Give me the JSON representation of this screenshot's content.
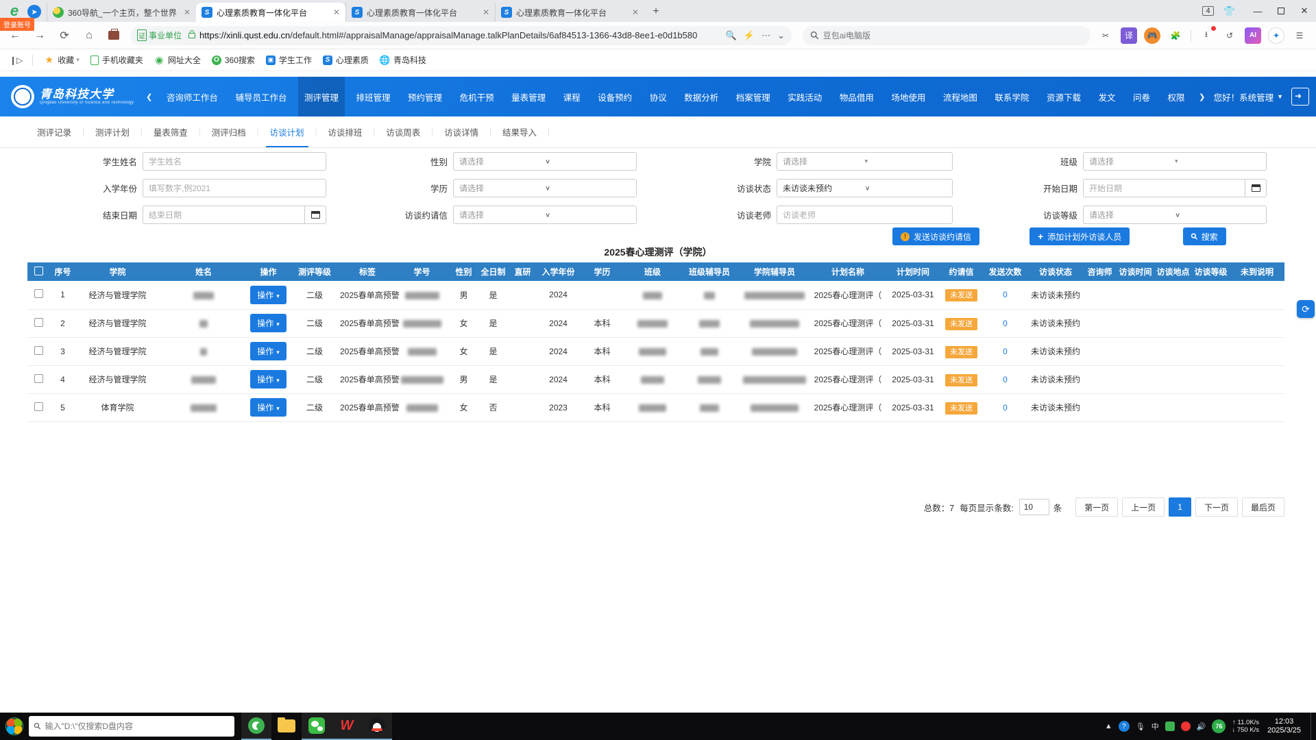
{
  "browser": {
    "tabs": [
      {
        "title": "360导航_一个主页，整个世界",
        "icon": "nav360",
        "active": false
      },
      {
        "title": "心理素质教育一体化平台",
        "icon": "xinli",
        "active": true
      },
      {
        "title": "心理素质教育一体化平台",
        "icon": "xinli",
        "active": false
      },
      {
        "title": "心理素质教育一体化平台",
        "icon": "xinli",
        "active": false
      }
    ],
    "tab_count": "4",
    "login_badge": "登录账号",
    "cert_icon": "证",
    "cert_label": "事业单位",
    "url_host": "https://xinli.qust.edu.cn",
    "url_rest": "/default.html#/appraisalManage/appraisalManage.talkPlanDetails/6af84513-1366-43d8-8ee1-e0d1b580",
    "search_placeholder": "豆包ai电脑版",
    "bookmarks": [
      "收藏",
      "手机收藏夹",
      "网址大全",
      "360搜索",
      "学生工作",
      "心理素质",
      "青岛科技"
    ]
  },
  "site": {
    "logo_cn": "青岛科技大学",
    "logo_en": "Qingdao University of Science and Technology",
    "nav": [
      "咨询师工作台",
      "辅导员工作台",
      "测评管理",
      "排班管理",
      "预约管理",
      "危机干预",
      "量表管理",
      "课程",
      "设备预约",
      "协议",
      "数据分析",
      "档案管理",
      "实践活动",
      "物品借用",
      "场地使用",
      "流程地图",
      "联系学院",
      "资源下载",
      "发文",
      "问卷",
      "权限"
    ],
    "nav_active": "测评管理",
    "greeting": "您好！系统管理",
    "sub_tabs": [
      "测评记录",
      "测评计划",
      "量表筛查",
      "测评归档",
      "访谈计划",
      "访谈排班",
      "访谈周表",
      "访谈详情",
      "结果导入"
    ],
    "sub_tab_active": "访谈计划"
  },
  "filters": {
    "fields": [
      {
        "label": "学生姓名",
        "type": "text",
        "placeholder": "学生姓名"
      },
      {
        "label": "性别",
        "type": "select",
        "value": "请选择"
      },
      {
        "label": "学院",
        "type": "select2",
        "value": "请选择"
      },
      {
        "label": "班级",
        "type": "select2",
        "value": "请选择"
      },
      {
        "label": "入学年份",
        "type": "text",
        "placeholder": "填写数字,例2021"
      },
      {
        "label": "学历",
        "type": "select",
        "value": "请选择"
      },
      {
        "label": "访谈状态",
        "type": "select",
        "value": "未访谈未预约"
      },
      {
        "label": "开始日期",
        "type": "date",
        "placeholder": "开始日期"
      },
      {
        "label": "结束日期",
        "type": "date",
        "placeholder": "结束日期"
      },
      {
        "label": "访谈约请信",
        "type": "select",
        "value": "请选择"
      },
      {
        "label": "访谈老师",
        "type": "text",
        "placeholder": "访谈老师"
      },
      {
        "label": "访谈等级",
        "type": "select",
        "value": "请选择"
      }
    ],
    "buttons": [
      {
        "label": "发送访谈约请信",
        "icon": "alert"
      },
      {
        "label": "添加计划外访谈人员",
        "icon": "plus"
      },
      {
        "label": "搜索",
        "icon": "search"
      }
    ]
  },
  "table": {
    "title": "2025春心理测评（学院）",
    "columns": [
      "序号",
      "学院",
      "姓名",
      "操作",
      "测评等级",
      "标签",
      "学号",
      "性别",
      "全日制",
      "直研",
      "入学年份",
      "学历",
      "班级",
      "班级辅导员",
      "学院辅导员",
      "计划名称",
      "计划时间",
      "约请信",
      "发送次数",
      "访谈状态",
      "咨询师",
      "访谈时间",
      "访谈地点",
      "访谈等级",
      "未到说明"
    ],
    "action_label": "操作",
    "rows": [
      {
        "seq": "1",
        "college": "经济与管理学院",
        "level": "二级",
        "tag": "2025春单高预警",
        "gender": "男",
        "fulltime": "是",
        "zhiyan": "",
        "year": "2024",
        "degree": "",
        "plan": "2025春心理测评（",
        "plan_time": "2025-03-31",
        "invite": "未发送",
        "send_count": "0",
        "status": "未访谈未预约",
        "counselor": "",
        "talk_time": "",
        "talk_place": "",
        "talk_level": "",
        "absent_note": ""
      },
      {
        "seq": "2",
        "college": "经济与管理学院",
        "level": "二级",
        "tag": "2025春单高预警",
        "gender": "女",
        "fulltime": "是",
        "zhiyan": "",
        "year": "2024",
        "degree": "本科",
        "plan": "2025春心理测评（",
        "plan_time": "2025-03-31",
        "invite": "未发送",
        "send_count": "0",
        "status": "未访谈未预约",
        "counselor": "",
        "talk_time": "",
        "talk_place": "",
        "talk_level": "",
        "absent_note": ""
      },
      {
        "seq": "3",
        "college": "经济与管理学院",
        "level": "二级",
        "tag": "2025春单高预警",
        "gender": "女",
        "fulltime": "是",
        "zhiyan": "",
        "year": "2024",
        "degree": "本科",
        "plan": "2025春心理测评（",
        "plan_time": "2025-03-31",
        "invite": "未发送",
        "send_count": "0",
        "status": "未访谈未预约",
        "counselor": "",
        "talk_time": "",
        "talk_place": "",
        "talk_level": "",
        "absent_note": ""
      },
      {
        "seq": "4",
        "college": "经济与管理学院",
        "level": "二级",
        "tag": "2025春单高预警",
        "gender": "男",
        "fulltime": "是",
        "zhiyan": "",
        "year": "2024",
        "degree": "本科",
        "plan": "2025春心理测评（",
        "plan_time": "2025-03-31",
        "invite": "未发送",
        "send_count": "0",
        "status": "未访谈未预约",
        "counselor": "",
        "talk_time": "",
        "talk_place": "",
        "talk_level": "",
        "absent_note": ""
      },
      {
        "seq": "5",
        "college": "体育学院",
        "level": "二级",
        "tag": "2025春单高预警",
        "gender": "女",
        "fulltime": "否",
        "zhiyan": "",
        "year": "2023",
        "degree": "本科",
        "plan": "2025春心理测评（",
        "plan_time": "2025-03-31",
        "invite": "未发送",
        "send_count": "0",
        "status": "未访谈未预约",
        "counselor": "",
        "talk_time": "",
        "talk_place": "",
        "talk_level": "",
        "absent_note": ""
      }
    ],
    "pagination": {
      "total_label": "总数：7",
      "per_page_label": "每页显示条数:",
      "per_page": "10",
      "unit": "条",
      "buttons": [
        "第一页",
        "上一页",
        "1",
        "下一页",
        "最后页"
      ],
      "active": "1"
    }
  },
  "taskbar": {
    "search_placeholder": "输入\"D:\\\"仅搜索D盘内容",
    "net_up": "11.0K/s",
    "net_down": "750 K/s",
    "battery": "76",
    "time": "12:03",
    "date": "2025/3/25"
  }
}
